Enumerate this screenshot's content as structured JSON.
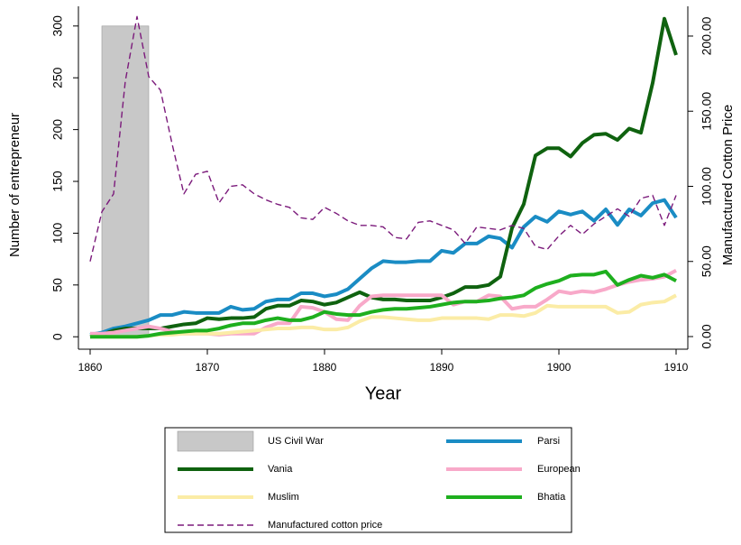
{
  "chart_data": {
    "type": "line",
    "x_label": "Year",
    "y_label": "Number of entrepreneur",
    "y2_label": "Manufactured Cotton Price",
    "x": [
      1860,
      1861,
      1862,
      1863,
      1864,
      1865,
      1866,
      1867,
      1868,
      1869,
      1870,
      1871,
      1872,
      1873,
      1874,
      1875,
      1876,
      1877,
      1878,
      1879,
      1880,
      1881,
      1882,
      1883,
      1884,
      1885,
      1886,
      1887,
      1888,
      1889,
      1890,
      1891,
      1892,
      1893,
      1894,
      1895,
      1896,
      1897,
      1898,
      1899,
      1900,
      1901,
      1902,
      1903,
      1904,
      1905,
      1906,
      1907,
      1908,
      1909,
      1910
    ],
    "shaded_region": {
      "name": "US Civil War",
      "x": [
        1861,
        1865
      ],
      "y": [
        0,
        300
      ],
      "color": "#c8c8c8"
    },
    "series": [
      {
        "name": "Parsi",
        "color": "#1a8cc4",
        "values": [
          2,
          4,
          8,
          10,
          13,
          16,
          21,
          21,
          24,
          23,
          23,
          23,
          29,
          26,
          27,
          34,
          36,
          36,
          42,
          42,
          39,
          41,
          46,
          56,
          66,
          73,
          72,
          72,
          73,
          73,
          83,
          81,
          90,
          90,
          97,
          95,
          86,
          106,
          116,
          111,
          121,
          118,
          121,
          112,
          123,
          108,
          123,
          117,
          129,
          132,
          115
        ]
      },
      {
        "name": "Vania",
        "color": "#0f620f",
        "values": [
          0,
          2,
          6,
          8,
          8,
          8,
          8,
          10,
          12,
          13,
          18,
          17,
          18,
          18,
          19,
          27,
          30,
          30,
          35,
          34,
          31,
          33,
          38,
          43,
          38,
          36,
          36,
          35,
          35,
          35,
          38,
          42,
          48,
          48,
          50,
          58,
          105,
          128,
          175,
          182,
          182,
          174,
          187,
          195,
          196,
          190,
          201,
          197,
          245,
          307,
          272
        ]
      },
      {
        "name": "European",
        "color": "#f8a9c9",
        "values": [
          3,
          3,
          4,
          6,
          8,
          10,
          8,
          5,
          3,
          3,
          3,
          2,
          3,
          3,
          3,
          9,
          13,
          13,
          29,
          28,
          24,
          17,
          16,
          30,
          39,
          40,
          40,
          40,
          40,
          40,
          40,
          31,
          34,
          34,
          40,
          39,
          27,
          29,
          29,
          36,
          44,
          42,
          44,
          43,
          46,
          50,
          53,
          55,
          56,
          58,
          64
        ]
      },
      {
        "name": "Muslim",
        "color": "#fbeca6",
        "values": [
          0,
          0,
          0,
          0,
          0,
          1,
          2,
          2,
          3,
          3,
          3,
          3,
          4,
          5,
          6,
          7,
          8,
          8,
          9,
          9,
          7,
          7,
          9,
          15,
          19,
          19,
          18,
          17,
          16,
          16,
          18,
          18,
          18,
          18,
          17,
          21,
          21,
          20,
          23,
          30,
          29,
          29,
          29,
          29,
          29,
          23,
          24,
          31,
          33,
          34,
          40
        ]
      },
      {
        "name": "Bhatia",
        "color": "#1eaf1e",
        "values": [
          0,
          0,
          0,
          0,
          0,
          1,
          3,
          4,
          5,
          6,
          6,
          8,
          11,
          13,
          13,
          16,
          18,
          16,
          16,
          19,
          24,
          22,
          21,
          21,
          24,
          26,
          27,
          27,
          28,
          29,
          31,
          33,
          34,
          34,
          35,
          37,
          38,
          40,
          47,
          51,
          54,
          59,
          60,
          60,
          63,
          50,
          55,
          59,
          57,
          60,
          54
        ]
      },
      {
        "name": "Manufactured cotton price",
        "color": "#7b1a7b",
        "dashed": true,
        "axis": "y2",
        "values": [
          50,
          83,
          95,
          170,
          213,
          173,
          164,
          128,
          95,
          108,
          110,
          89,
          100,
          101,
          95,
          91,
          88,
          86,
          79,
          78,
          86,
          82,
          77,
          74,
          74,
          73,
          66,
          65,
          76,
          77,
          74,
          71,
          62,
          73,
          72,
          71,
          74,
          72,
          60,
          58,
          67,
          74,
          68,
          75,
          80,
          85,
          80,
          92,
          94,
          74,
          94
        ]
      }
    ],
    "xlim": [
      1859,
      1911
    ],
    "xticks": [
      1860,
      1870,
      1880,
      1890,
      1900,
      1910
    ],
    "ylim": [
      -12,
      319
    ],
    "yticks": [
      0,
      50,
      100,
      150,
      200,
      250,
      300
    ],
    "y2lim": [
      -8.4,
      219.8
    ],
    "y2ticks": [
      {
        "value": 0,
        "label": "0.00"
      },
      {
        "value": 50,
        "label": "50.00"
      },
      {
        "value": 100,
        "label": "100.00"
      },
      {
        "value": 150,
        "label": "150.00"
      },
      {
        "value": 200,
        "label": "200.00"
      }
    ],
    "grid": false
  }
}
